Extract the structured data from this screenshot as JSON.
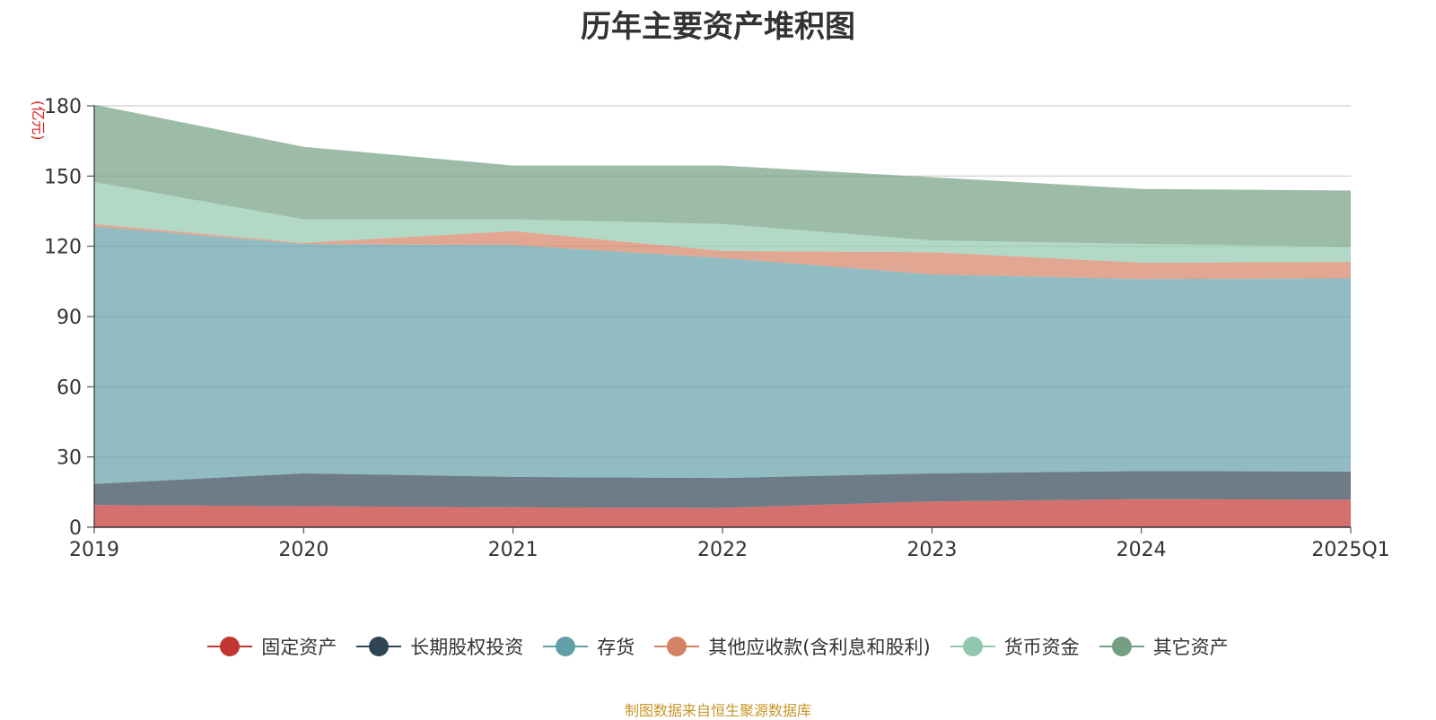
{
  "chart_data": {
    "type": "area",
    "stacked": true,
    "title": "历年主要资产堆积图",
    "unit_label": "亿元",
    "categories": [
      "2019",
      "2020",
      "2021",
      "2022",
      "2023",
      "2024",
      "2025Q1"
    ],
    "ylim": [
      0,
      180
    ],
    "yticks": [
      0,
      30,
      60,
      90,
      120,
      150,
      180
    ],
    "grid": true,
    "legend_position": "bottom",
    "series": [
      {
        "name": "固定资产",
        "color": "#c23531",
        "values": [
          9.5,
          9.0,
          8.5,
          8.3,
          11.0,
          12.0,
          11.8
        ]
      },
      {
        "name": "长期股权投资",
        "color": "#2f4554",
        "values": [
          9.0,
          14.0,
          13.0,
          12.7,
          12.0,
          12.0,
          12.0
        ]
      },
      {
        "name": "存货",
        "color": "#61a0a8",
        "values": [
          110.0,
          98.0,
          99.0,
          94.0,
          85.0,
          82.0,
          82.5
        ]
      },
      {
        "name": "其他应收款(含利息和股利)",
        "color": "#d48265",
        "values": [
          1.0,
          0.5,
          6.0,
          3.0,
          9.5,
          7.0,
          7.0
        ]
      },
      {
        "name": "货币资金",
        "color": "#91c7ae",
        "values": [
          18.0,
          10.0,
          5.0,
          11.5,
          5.0,
          8.0,
          6.5
        ]
      },
      {
        "name": "其它资产",
        "color": "#749f83",
        "values": [
          33.0,
          31.0,
          23.0,
          25.0,
          27.0,
          23.5,
          24.0
        ]
      }
    ]
  },
  "source_text": "制图数据来自恒生聚源数据库"
}
